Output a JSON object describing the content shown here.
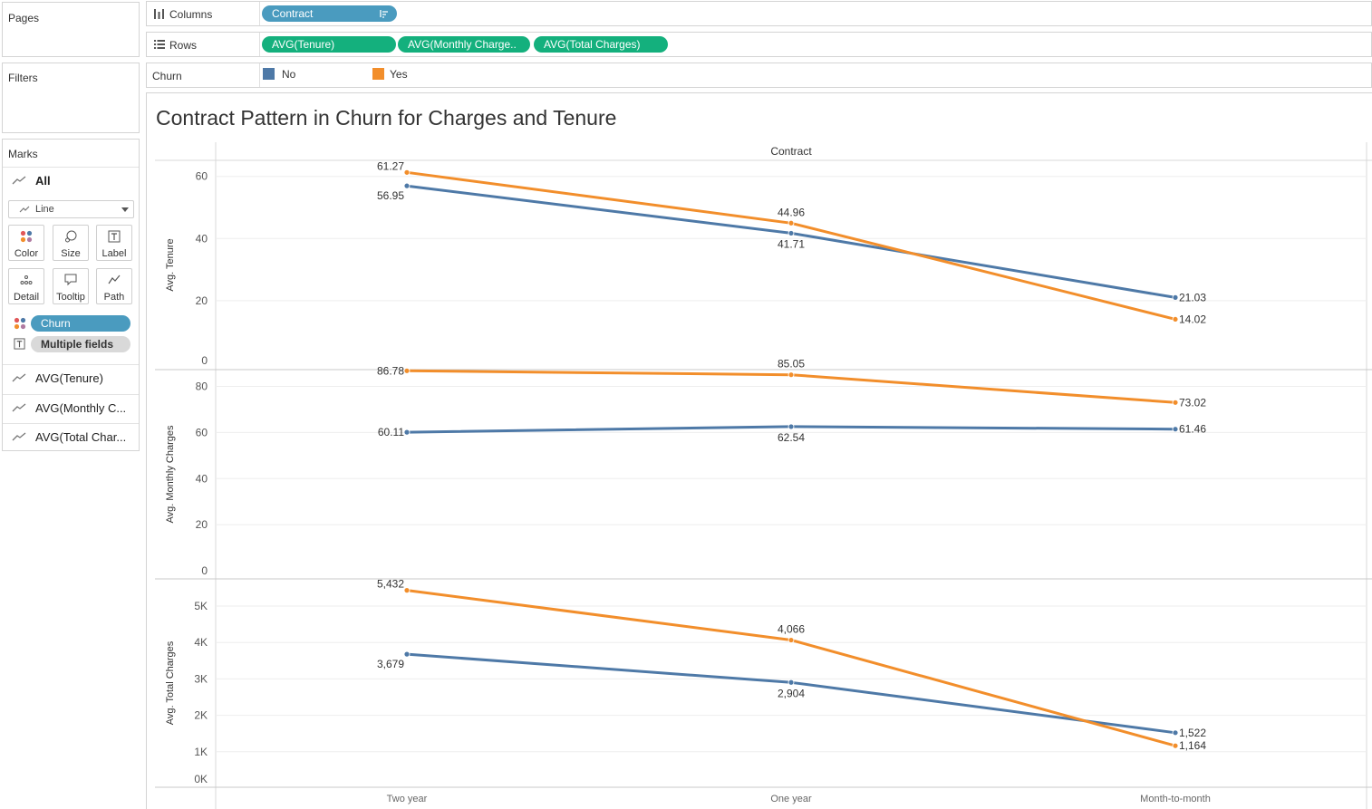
{
  "panels": {
    "pages": "Pages",
    "filters": "Filters",
    "marks": "Marks"
  },
  "marks": {
    "all_label": "All",
    "mark_type": "Line",
    "buttons": [
      "Color",
      "Size",
      "Label",
      "Detail",
      "Tooltip",
      "Path"
    ],
    "color_field": "Churn",
    "label_field": "Multiple fields",
    "measures": [
      "AVG(Tenure)",
      "AVG(Monthly C...",
      "AVG(Total Char..."
    ]
  },
  "shelves": {
    "columns_label": "Columns",
    "columns_pill": "Contract",
    "rows_label": "Rows",
    "rows_pills": [
      "AVG(Tenure)",
      "AVG(Monthly Charge..",
      "AVG(Total Charges)"
    ],
    "legend_label": "Churn",
    "legend_items": [
      {
        "name": "No",
        "color": "#4e79a7"
      },
      {
        "name": "Yes",
        "color": "#f28e2b"
      }
    ]
  },
  "chart_data": {
    "type": "line",
    "title": "Contract Pattern in Churn for Charges and Tenure",
    "column_header": "Contract",
    "categories": [
      "Two year",
      "One year",
      "Month-to-month"
    ],
    "panes": [
      {
        "ylabel": "Avg. Tenure",
        "ticks": [
          "0",
          "20",
          "40",
          "60"
        ],
        "ylim": [
          0,
          66
        ],
        "series": [
          {
            "name": "No",
            "color": "#4e79a7",
            "values": [
              56.95,
              41.71,
              21.03
            ],
            "labels": [
              "56.95",
              "41.71",
              "21.03"
            ]
          },
          {
            "name": "Yes",
            "color": "#f28e2b",
            "values": [
              61.27,
              44.96,
              14.02
            ],
            "labels": [
              "61.27",
              "44.96",
              "14.02"
            ]
          }
        ]
      },
      {
        "ylabel": "Avg. Monthly Charges",
        "ticks": [
          "0",
          "20",
          "40",
          "60",
          "80"
        ],
        "ylim": [
          0,
          92
        ],
        "series": [
          {
            "name": "No",
            "color": "#4e79a7",
            "values": [
              60.11,
              62.54,
              61.46
            ],
            "labels": [
              "60.11",
              "62.54",
              "61.46"
            ]
          },
          {
            "name": "Yes",
            "color": "#f28e2b",
            "values": [
              86.78,
              85.05,
              73.02
            ],
            "labels": [
              "86.78",
              "85.05",
              "73.02"
            ]
          }
        ]
      },
      {
        "ylabel": "Avg. Total Charges",
        "ticks": [
          "0K",
          "1K",
          "2K",
          "3K",
          "4K",
          "5K"
        ],
        "ylim": [
          0,
          5800
        ],
        "series": [
          {
            "name": "No",
            "color": "#4e79a7",
            "values": [
              3679,
              2904,
              1522
            ],
            "labels": [
              "3,679",
              "2,904",
              "1,522"
            ]
          },
          {
            "name": "Yes",
            "color": "#f28e2b",
            "values": [
              5432,
              4066,
              1164
            ],
            "labels": [
              "5,432",
              "4,066",
              "1,164"
            ]
          }
        ]
      }
    ]
  }
}
